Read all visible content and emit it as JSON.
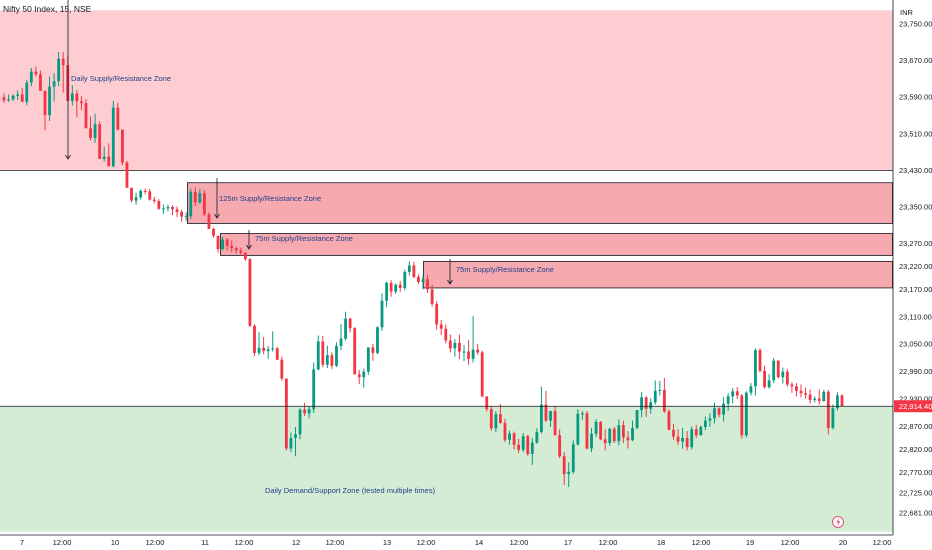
{
  "header": {
    "title": "Nifty 50 Index, 15, NSE"
  },
  "price_axis": {
    "currency": "INR",
    "last_price_label": "22,914.40"
  },
  "colors": {
    "up": "#089981",
    "down": "#f23645",
    "supply_zone": "#f7a9b0",
    "daily_supply_zone": "#fdcdd1",
    "demand_zone": "#d5ecd4",
    "last_price_tag": "#f23645",
    "annotation_text": "#1e3f8a"
  },
  "chart_data": {
    "type": "candlestick",
    "title": "Nifty 50 Index, 15, NSE",
    "y_unit": "INR",
    "y_range": [
      22640,
      23775
    ],
    "y_ticks": [
      23750,
      23670,
      23590,
      23510,
      23430,
      23350,
      23270,
      23220,
      23170,
      23110,
      23050,
      22990,
      22930,
      22870,
      22820,
      22770,
      22725,
      22681
    ],
    "y_tick_labels": [
      "23,750.00",
      "23,670.00",
      "23,590.00",
      "23,510.00",
      "23,430.00",
      "23,350.00",
      "23,270.00",
      "23,220.00",
      "23,170.00",
      "23,110.00",
      "23,050.00",
      "22,990.00",
      "22,930.00",
      "22,870.00",
      "22,820.00",
      "22,770.00",
      "22,725.00",
      "22,681.00"
    ],
    "x_tick_labels": [
      "7",
      "12:00",
      "10",
      "12:00",
      "11",
      "12:00",
      "12",
      "12:00",
      "13",
      "12:00",
      "14",
      "12:00",
      "17",
      "12:00",
      "18",
      "12:00",
      "19",
      "12:00",
      "20",
      "12:00"
    ],
    "last_price": 22914.4,
    "candles_ohlc": [
      [
        23590,
        23598,
        23577,
        23583
      ],
      [
        23583,
        23596,
        23580,
        23585
      ],
      [
        23585,
        23597,
        23582,
        23593
      ],
      [
        23593,
        23605,
        23584,
        23596
      ],
      [
        23596,
        23610,
        23580,
        23580
      ],
      [
        23580,
        23628,
        23572,
        23622
      ],
      [
        23622,
        23654,
        23614,
        23646
      ],
      [
        23646,
        23657,
        23635,
        23640
      ],
      [
        23640,
        23648,
        23604,
        23604
      ],
      [
        23604,
        23604,
        23518,
        23551
      ],
      [
        23551,
        23635,
        23538,
        23613
      ],
      [
        23613,
        23642,
        23581,
        23625
      ],
      [
        23625,
        23689,
        23614,
        23674
      ],
      [
        23674,
        23689,
        23600,
        23660
      ],
      [
        23660,
        23680,
        23582,
        23582
      ],
      [
        23582,
        23616,
        23572,
        23598
      ],
      [
        23598,
        23606,
        23546,
        23581
      ],
      [
        23581,
        23592,
        23562,
        23577
      ],
      [
        23577,
        23586,
        23522,
        23522
      ],
      [
        23522,
        23548,
        23496,
        23501
      ],
      [
        23501,
        23554,
        23490,
        23531
      ],
      [
        23531,
        23537,
        23455,
        23455
      ],
      [
        23455,
        23482,
        23449,
        23460
      ],
      [
        23460,
        23489,
        23439,
        23439
      ],
      [
        23439,
        23582,
        23437,
        23567
      ],
      [
        23567,
        23578,
        23517,
        23519
      ],
      [
        23519,
        23519,
        23441,
        23447
      ],
      [
        23447,
        23451,
        23392,
        23392
      ],
      [
        23392,
        23392,
        23360,
        23364
      ],
      [
        23364,
        23381,
        23355,
        23371
      ],
      [
        23371,
        23388,
        23366,
        23385
      ],
      [
        23385,
        23390,
        23378,
        23384
      ],
      [
        23384,
        23389,
        23364,
        23366
      ],
      [
        23366,
        23372,
        23358,
        23363
      ],
      [
        23363,
        23367,
        23344,
        23346
      ],
      [
        23346,
        23355,
        23335,
        23347
      ],
      [
        23347,
        23355,
        23340,
        23350
      ],
      [
        23350,
        23354,
        23332,
        23345
      ],
      [
        23345,
        23351,
        23328,
        23339
      ],
      [
        23339,
        23344,
        23318,
        23329
      ],
      [
        23329,
        23338,
        23320,
        23330
      ],
      [
        23330,
        23390,
        23324,
        23383
      ],
      [
        23383,
        23393,
        23352,
        23360
      ],
      [
        23360,
        23389,
        23357,
        23380
      ],
      [
        23380,
        23387,
        23330,
        23334
      ],
      [
        23334,
        23338,
        23302,
        23302
      ],
      [
        23302,
        23304,
        23283,
        23287
      ],
      [
        23287,
        23287,
        23250,
        23258
      ],
      [
        23258,
        23285,
        23255,
        23279
      ],
      [
        23279,
        23282,
        23255,
        23265
      ],
      [
        23265,
        23277,
        23251,
        23260
      ],
      [
        23260,
        23263,
        23248,
        23255
      ],
      [
        23255,
        23261,
        23244,
        23250
      ],
      [
        23250,
        23251,
        23232,
        23236
      ],
      [
        23236,
        23238,
        23088,
        23090
      ],
      [
        23090,
        23094,
        23024,
        23031
      ],
      [
        23031,
        23076,
        23026,
        23042
      ],
      [
        23042,
        23066,
        23028,
        23035
      ],
      [
        23035,
        23046,
        23018,
        23039
      ],
      [
        23039,
        23078,
        23034,
        23041
      ],
      [
        23041,
        23045,
        23016,
        23016
      ],
      [
        23016,
        23023,
        22970,
        22975
      ],
      [
        22975,
        22975,
        22818,
        22822
      ],
      [
        22822,
        22857,
        22814,
        22845
      ],
      [
        22845,
        22869,
        22805,
        22853
      ],
      [
        22853,
        22910,
        22842,
        22907
      ],
      [
        22907,
        22922,
        22893,
        22899
      ],
      [
        22899,
        22914,
        22888,
        22908
      ],
      [
        22908,
        23010,
        22900,
        22995
      ],
      [
        22995,
        23069,
        22993,
        23056
      ],
      [
        23056,
        23068,
        23000,
        23005
      ],
      [
        23005,
        23047,
        22998,
        23026
      ],
      [
        23026,
        23032,
        22996,
        23003
      ],
      [
        23003,
        23054,
        23000,
        23046
      ],
      [
        23046,
        23094,
        23037,
        23062
      ],
      [
        23062,
        23121,
        23058,
        23106
      ],
      [
        23106,
        23108,
        23076,
        23085
      ],
      [
        23085,
        23087,
        22984,
        22984
      ],
      [
        22984,
        22994,
        22963,
        22978
      ],
      [
        22978,
        22997,
        22955,
        22990
      ],
      [
        22990,
        23043,
        22983,
        23043
      ],
      [
        23043,
        23051,
        23014,
        23031
      ],
      [
        23031,
        23089,
        23028,
        23087
      ],
      [
        23087,
        23161,
        23079,
        23145
      ],
      [
        23145,
        23187,
        23131,
        23184
      ],
      [
        23184,
        23190,
        23154,
        23165
      ],
      [
        23165,
        23183,
        23160,
        23180
      ],
      [
        23180,
        23188,
        23164,
        23173
      ],
      [
        23173,
        23213,
        23168,
        23208
      ],
      [
        23208,
        23231,
        23200,
        23222
      ],
      [
        23222,
        23230,
        23194,
        23197
      ],
      [
        23197,
        23203,
        23181,
        23186
      ],
      [
        23186,
        23201,
        23170,
        23192
      ],
      [
        23192,
        23201,
        23162,
        23170
      ],
      [
        23170,
        23180,
        23132,
        23138
      ],
      [
        23138,
        23144,
        23082,
        23093
      ],
      [
        23093,
        23103,
        23070,
        23084
      ],
      [
        23084,
        23093,
        23052,
        23058
      ],
      [
        23058,
        23071,
        23032,
        23041
      ],
      [
        23041,
        23061,
        23023,
        23053
      ],
      [
        23053,
        23071,
        23018,
        23034
      ],
      [
        23034,
        23048,
        23013,
        23034
      ],
      [
        23034,
        23059,
        23005,
        23018
      ],
      [
        23018,
        23112,
        23010,
        23038
      ],
      [
        23038,
        23050,
        23027,
        23032
      ],
      [
        23032,
        23036,
        22934,
        22936
      ],
      [
        22936,
        22936,
        22903,
        22908
      ],
      [
        22908,
        22915,
        22861,
        22866
      ],
      [
        22866,
        22904,
        22858,
        22897
      ],
      [
        22897,
        22919,
        22876,
        22878
      ],
      [
        22878,
        22887,
        22836,
        22841
      ],
      [
        22841,
        22861,
        22830,
        22855
      ],
      [
        22855,
        22859,
        22820,
        22830
      ],
      [
        22830,
        22843,
        22812,
        22819
      ],
      [
        22819,
        22856,
        22814,
        22849
      ],
      [
        22849,
        22852,
        22806,
        22810
      ],
      [
        22810,
        22845,
        22786,
        22835
      ],
      [
        22835,
        22866,
        22832,
        22858
      ],
      [
        22858,
        22957,
        22855,
        22918
      ],
      [
        22918,
        22948,
        22880,
        22883
      ],
      [
        22883,
        22905,
        22869,
        22904
      ],
      [
        22904,
        22914,
        22851,
        22851
      ],
      [
        22851,
        22864,
        22801,
        22805
      ],
      [
        22805,
        22814,
        22742,
        22766
      ],
      [
        22766,
        22792,
        22738,
        22771
      ],
      [
        22771,
        22840,
        22767,
        22831
      ],
      [
        22831,
        22908,
        22828,
        22898
      ],
      [
        22898,
        22904,
        22885,
        22899
      ],
      [
        22899,
        22904,
        22820,
        22822
      ],
      [
        22822,
        22867,
        22814,
        22854
      ],
      [
        22854,
        22886,
        22847,
        22880
      ],
      [
        22880,
        22882,
        22840,
        22842
      ],
      [
        22842,
        22864,
        22818,
        22834
      ],
      [
        22834,
        22867,
        22828,
        22865
      ],
      [
        22865,
        22869,
        22834,
        22838
      ],
      [
        22838,
        22886,
        22829,
        22873
      ],
      [
        22873,
        22883,
        22834,
        22846
      ],
      [
        22846,
        22860,
        22822,
        22840
      ],
      [
        22840,
        22883,
        22838,
        22867
      ],
      [
        22867,
        22906,
        22864,
        22906
      ],
      [
        22906,
        22946,
        22890,
        22934
      ],
      [
        22934,
        22936,
        22891,
        22909
      ],
      [
        22909,
        22932,
        22898,
        22923
      ],
      [
        22923,
        22971,
        22918,
        22948
      ],
      [
        22948,
        22970,
        22938,
        22950
      ],
      [
        22950,
        22976,
        22900,
        22903
      ],
      [
        22903,
        22908,
        22862,
        22863
      ],
      [
        22863,
        22876,
        22841,
        22848
      ],
      [
        22848,
        22864,
        22830,
        22837
      ],
      [
        22837,
        22867,
        22821,
        22845
      ],
      [
        22845,
        22860,
        22818,
        22825
      ],
      [
        22825,
        22870,
        22820,
        22864
      ],
      [
        22864,
        22874,
        22845,
        22851
      ],
      [
        22851,
        22873,
        22850,
        22869
      ],
      [
        22869,
        22892,
        22862,
        22883
      ],
      [
        22883,
        22899,
        22869,
        22888
      ],
      [
        22888,
        22922,
        22877,
        22910
      ],
      [
        22910,
        22912,
        22890,
        22896
      ],
      [
        22896,
        22934,
        22881,
        22920
      ],
      [
        22920,
        22943,
        22904,
        22936
      ],
      [
        22936,
        22954,
        22921,
        22947
      ],
      [
        22947,
        22956,
        22930,
        22938
      ],
      [
        22938,
        22941,
        22844,
        22851
      ],
      [
        22851,
        22947,
        22846,
        22944
      ],
      [
        22944,
        22965,
        22938,
        22958
      ],
      [
        22958,
        23041,
        22938,
        23037
      ],
      [
        23037,
        23041,
        22988,
        22992
      ],
      [
        22992,
        23003,
        22953,
        22956
      ],
      [
        22956,
        22985,
        22953,
        22971
      ],
      [
        22971,
        23020,
        22965,
        23014
      ],
      [
        23014,
        23015,
        22975,
        22978
      ],
      [
        22978,
        22999,
        22964,
        22990
      ],
      [
        22990,
        22996,
        22957,
        22962
      ],
      [
        22962,
        22967,
        22944,
        22958
      ],
      [
        22958,
        22965,
        22936,
        22948
      ],
      [
        22948,
        22962,
        22934,
        22943
      ],
      [
        22943,
        22955,
        22931,
        22940
      ],
      [
        22940,
        22951,
        22920,
        22928
      ],
      [
        22928,
        22936,
        22923,
        22931
      ],
      [
        22931,
        22951,
        22918,
        22926
      ],
      [
        22926,
        22950,
        22924,
        22946
      ],
      [
        22946,
        22950,
        22853,
        22867
      ],
      [
        22867,
        22918,
        22864,
        22910
      ],
      [
        22910,
        22945,
        22905,
        22938
      ],
      [
        22938,
        22941,
        22914,
        22914
      ]
    ],
    "zones": [
      {
        "label": "Daily Supply/Resistance Zone",
        "top": 23780,
        "bottom": 23430,
        "kind": "daily_supply"
      },
      {
        "label": "125m Supply/Resistance Zone",
        "top": 23403,
        "bottom": 23314,
        "kind": "supply"
      },
      {
        "label": "75m Supply/Resistance Zone",
        "top": 23292,
        "bottom": 23244,
        "kind": "supply"
      },
      {
        "label": "75m Supply/Resistance Zone",
        "top": 23231,
        "bottom": 23173,
        "kind": "supply"
      },
      {
        "label": "Daily Demand/Support Zone (tested multiple times)",
        "top": 22914.4,
        "bottom": 22640,
        "kind": "demand"
      }
    ]
  }
}
